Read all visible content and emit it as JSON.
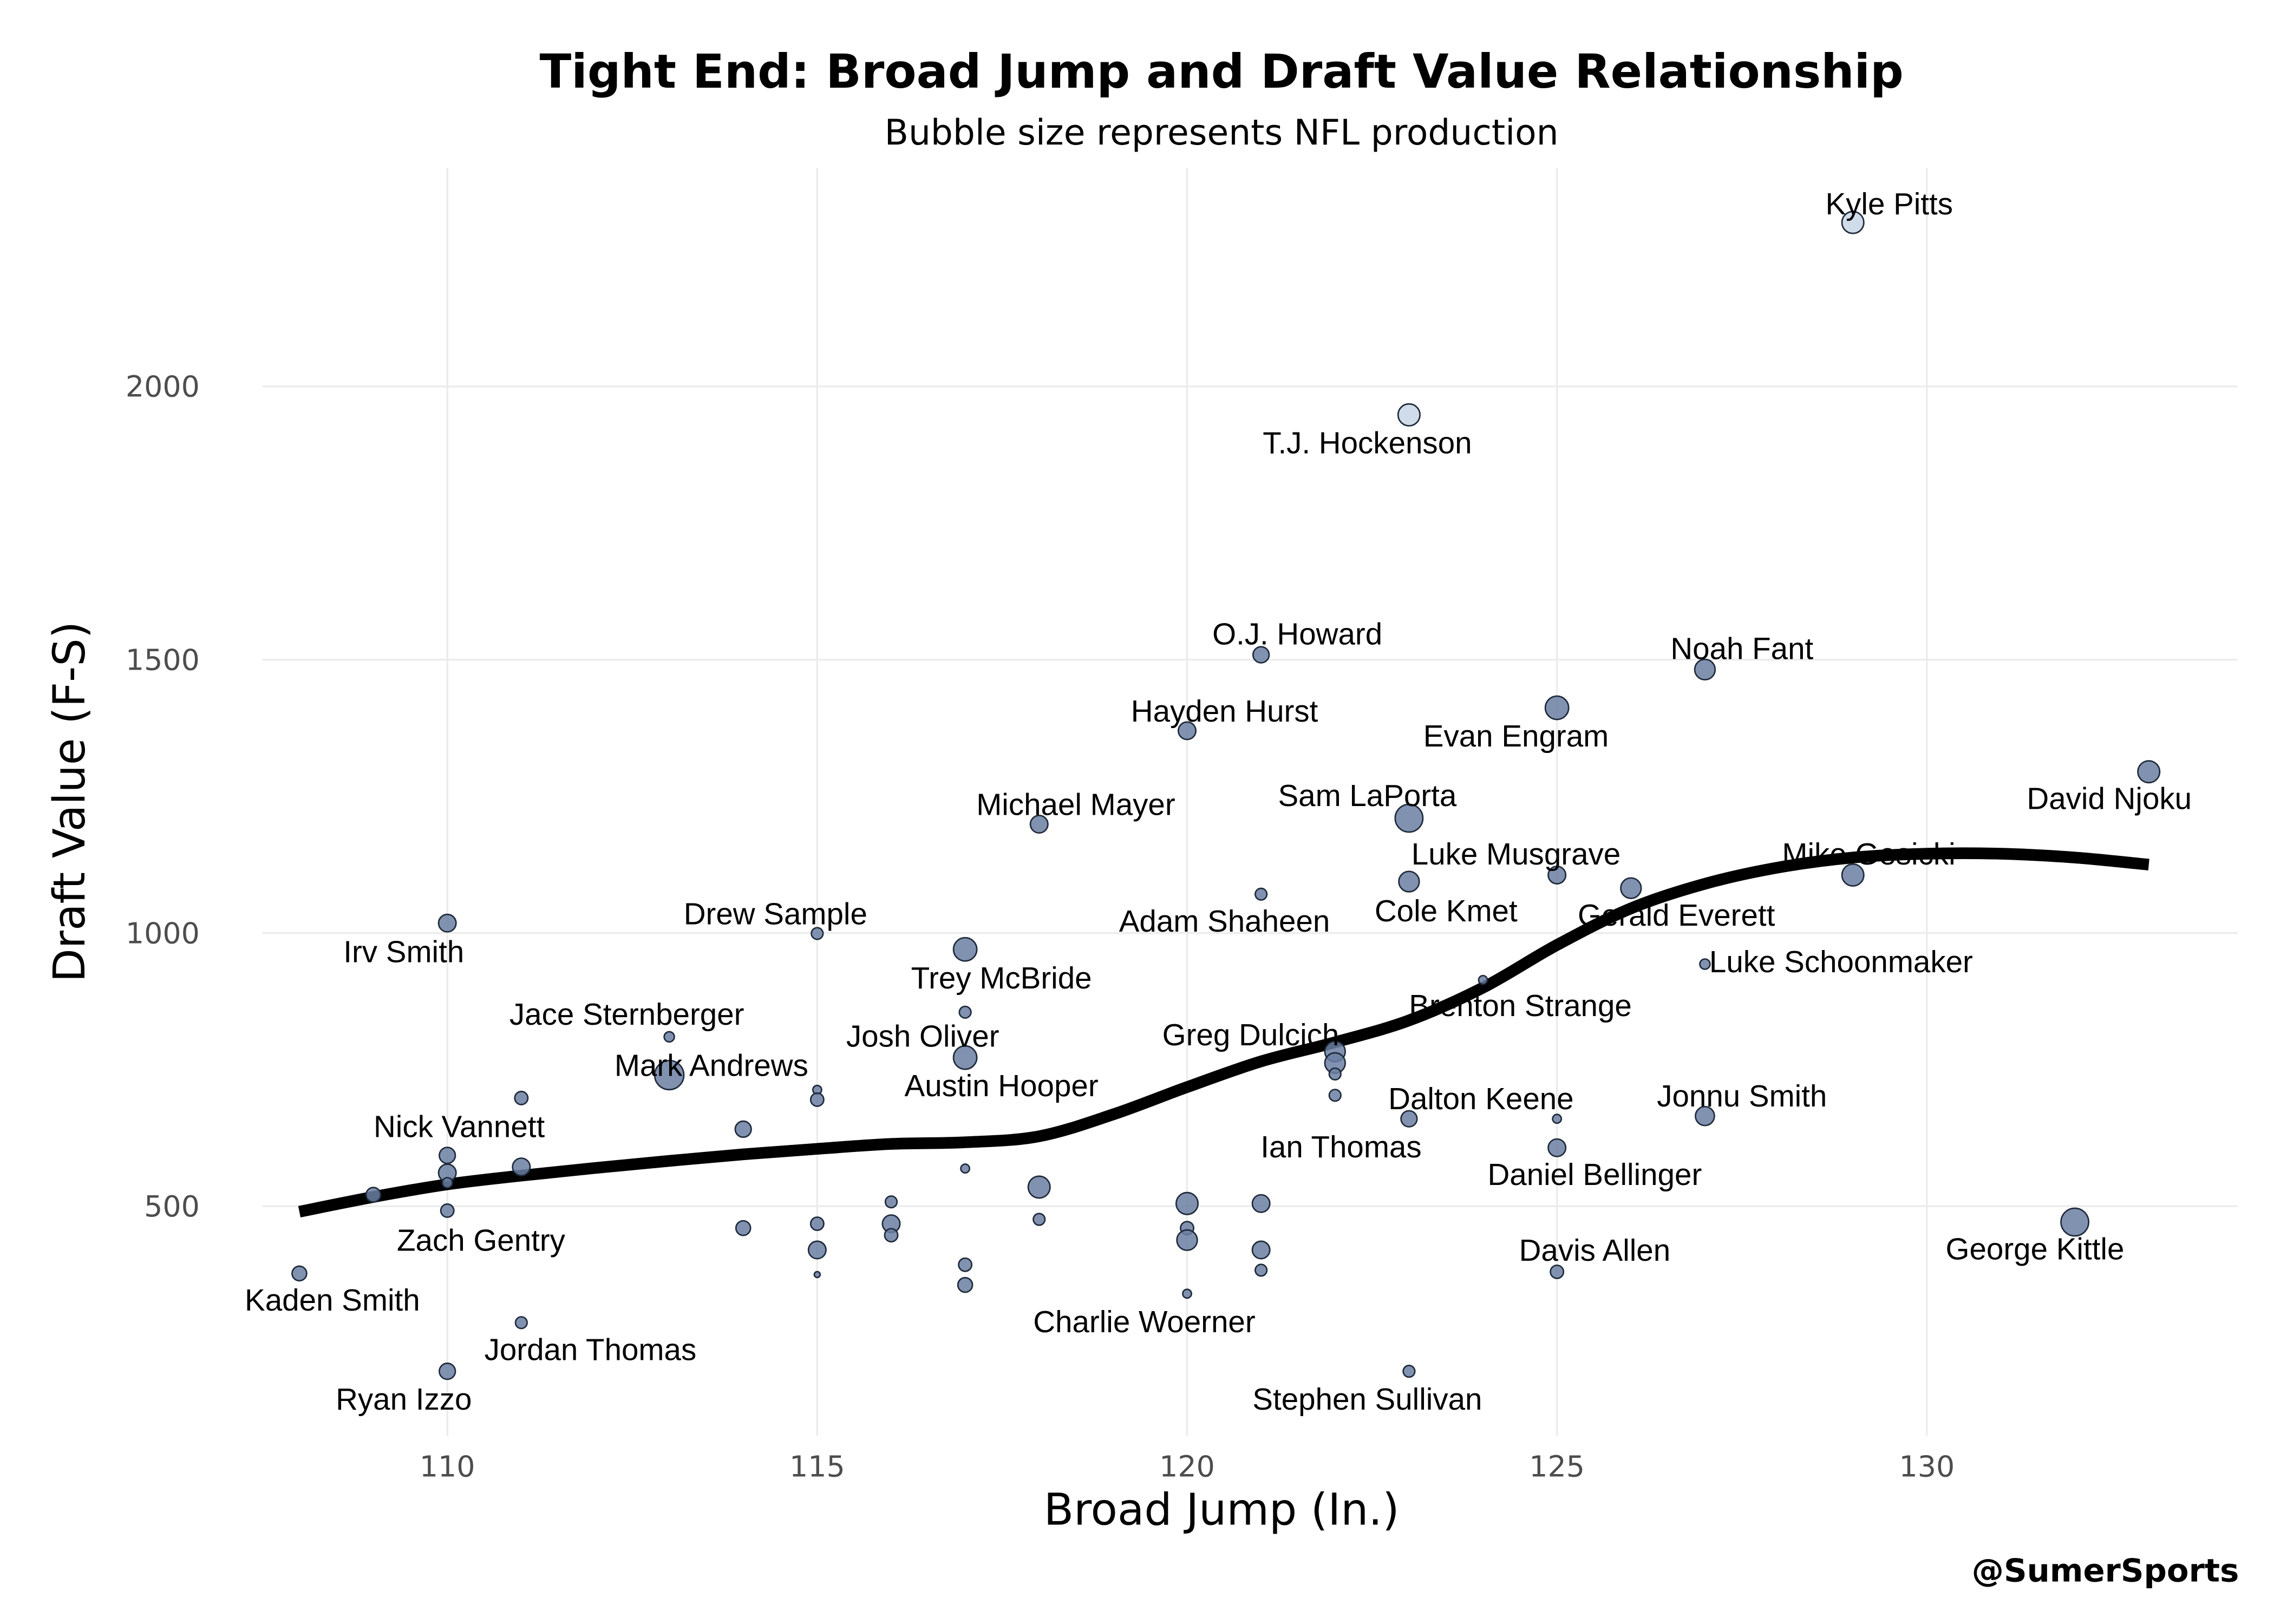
{
  "chart_data": {
    "type": "scatter",
    "title": "Tight End: Broad Jump and Draft Value Relationship",
    "subtitle": "Bubble size represents NFL production",
    "xlabel": "Broad Jump (In.)",
    "ylabel": "Draft Value (F-S)",
    "xlim": [
      107.5,
      134.2
    ],
    "ylim": [
      80,
      2400
    ],
    "xticks": [
      110,
      115,
      120,
      125,
      130
    ],
    "yticks": [
      500,
      1000,
      1500,
      2000
    ],
    "grid": true,
    "legend": "none",
    "colors": {
      "point": "#6b7fa3",
      "point_light": "#c8d6e5",
      "point_stroke": "#1f2a3a",
      "trend": "#000000"
    },
    "points": [
      {
        "x": 129,
        "y": 2300,
        "size": 7.5,
        "label": "Kyle Pitts",
        "light": true
      },
      {
        "x": 123,
        "y": 1948,
        "size": 7.5,
        "label": "T.J. Hockenson",
        "light": true
      },
      {
        "x": 121,
        "y": 1509,
        "size": 5.5,
        "label": "O.J. Howard"
      },
      {
        "x": 127,
        "y": 1482,
        "size": 7,
        "label": "Noah Fant"
      },
      {
        "x": 125,
        "y": 1412,
        "size": 8,
        "label": "Evan Engram"
      },
      {
        "x": 120,
        "y": 1370,
        "size": 6,
        "label": "Hayden Hurst"
      },
      {
        "x": 133,
        "y": 1295,
        "size": 7.5,
        "label": "David Njoku"
      },
      {
        "x": 123,
        "y": 1210,
        "size": 9.5,
        "label": "Sam LaPorta"
      },
      {
        "x": 118,
        "y": 1199,
        "size": 6,
        "label": "Michael Mayer"
      },
      {
        "x": 129,
        "y": 1106,
        "size": 7.5,
        "label": "Mike Gesicki"
      },
      {
        "x": 125,
        "y": 1106,
        "size": 6,
        "label": "Luke Musgrave"
      },
      {
        "x": 123,
        "y": 1094,
        "size": 7,
        "label": "Cole Kmet"
      },
      {
        "x": 126,
        "y": 1082,
        "size": 7,
        "label": "Gerald Everett"
      },
      {
        "x": 121,
        "y": 1071,
        "size": 4,
        "label": "Adam Shaheen"
      },
      {
        "x": 110,
        "y": 1018,
        "size": 6,
        "label": "Irv Smith"
      },
      {
        "x": 115,
        "y": 999,
        "size": 4,
        "label": "Drew Sample"
      },
      {
        "x": 117,
        "y": 970,
        "size": 8,
        "label": "Trey McBride"
      },
      {
        "x": 127,
        "y": 943,
        "size": 3.5,
        "label": "Luke Schoonmaker"
      },
      {
        "x": 124,
        "y": 914,
        "size": 3,
        "label": "Brenton Strange"
      },
      {
        "x": 117,
        "y": 855,
        "size": 4,
        "label": "Josh Oliver"
      },
      {
        "x": 113,
        "y": 810,
        "size": 3.5,
        "label": "Jace Sternberger"
      },
      {
        "x": 113,
        "y": 740,
        "size": 10,
        "label": "Mark Andrews"
      },
      {
        "x": 117,
        "y": 772,
        "size": 8,
        "label": "Austin Hooper"
      },
      {
        "x": 122,
        "y": 783,
        "size": 7,
        "label": "Greg Dulcich"
      },
      {
        "x": 122,
        "y": 762,
        "size": 7
      },
      {
        "x": 122,
        "y": 742,
        "size": 4
      },
      {
        "x": 122,
        "y": 703,
        "size": 4,
        "label": "Ian Thomas"
      },
      {
        "x": 115,
        "y": 713,
        "size": 3
      },
      {
        "x": 115,
        "y": 695,
        "size": 4.5
      },
      {
        "x": 111,
        "y": 698,
        "size": 4.5
      },
      {
        "x": 123,
        "y": 660,
        "size": 5.5,
        "label": "Dalton Keene"
      },
      {
        "x": 127,
        "y": 665,
        "size": 6.5,
        "label": "Jonnu Smith"
      },
      {
        "x": 125,
        "y": 660,
        "size": 3
      },
      {
        "x": 114,
        "y": 641,
        "size": 5.5
      },
      {
        "x": 110,
        "y": 593,
        "size": 5.5,
        "label": "Nick Vannett"
      },
      {
        "x": 125,
        "y": 607,
        "size": 6,
        "label": "Daniel Bellinger"
      },
      {
        "x": 110,
        "y": 561,
        "size": 6
      },
      {
        "x": 110,
        "y": 543,
        "size": 3.5
      },
      {
        "x": 111,
        "y": 572,
        "size": 6
      },
      {
        "x": 109,
        "y": 521,
        "size": 5
      },
      {
        "x": 117,
        "y": 569,
        "size": 3
      },
      {
        "x": 118,
        "y": 535,
        "size": 7.5
      },
      {
        "x": 116,
        "y": 508,
        "size": 4
      },
      {
        "x": 120,
        "y": 505,
        "size": 7.5
      },
      {
        "x": 121,
        "y": 505,
        "size": 6
      },
      {
        "x": 110,
        "y": 492,
        "size": 4.5,
        "label": "Zach Gentry"
      },
      {
        "x": 118,
        "y": 476,
        "size": 4
      },
      {
        "x": 132,
        "y": 471,
        "size": 9.5,
        "label": "George Kittle"
      },
      {
        "x": 115,
        "y": 468,
        "size": 4.5
      },
      {
        "x": 116,
        "y": 468,
        "size": 6
      },
      {
        "x": 116,
        "y": 447,
        "size": 4.5
      },
      {
        "x": 120,
        "y": 460,
        "size": 4.5
      },
      {
        "x": 120,
        "y": 438,
        "size": 7
      },
      {
        "x": 114,
        "y": 460,
        "size": 5
      },
      {
        "x": 115,
        "y": 420,
        "size": 6
      },
      {
        "x": 121,
        "y": 420,
        "size": 6
      },
      {
        "x": 117,
        "y": 393,
        "size": 4.5
      },
      {
        "x": 121,
        "y": 383,
        "size": 4
      },
      {
        "x": 125,
        "y": 380,
        "size": 4.5,
        "label": "Davis Allen"
      },
      {
        "x": 108,
        "y": 377,
        "size": 5,
        "label": "Kaden Smith"
      },
      {
        "x": 115,
        "y": 375,
        "size": 2
      },
      {
        "x": 117,
        "y": 356,
        "size": 5
      },
      {
        "x": 120,
        "y": 340,
        "size": 3,
        "label": "Charlie Woerner"
      },
      {
        "x": 111,
        "y": 287,
        "size": 4,
        "label": "Jordan Thomas"
      },
      {
        "x": 110,
        "y": 198,
        "size": 5.5,
        "label": "Ryan Izzo"
      },
      {
        "x": 123,
        "y": 198,
        "size": 4,
        "label": "Stephen Sullivan"
      }
    ],
    "trend": {
      "x": [
        108,
        109,
        110,
        111,
        112,
        113,
        114,
        115,
        116,
        117,
        118,
        119,
        120,
        121,
        122,
        123,
        124,
        125,
        126,
        127,
        128,
        129,
        130,
        131,
        132,
        133
      ],
      "y": [
        490,
        517,
        540,
        556,
        570,
        583,
        595,
        605,
        614,
        617,
        628,
        668,
        718,
        765,
        800,
        840,
        900,
        978,
        1045,
        1090,
        1120,
        1138,
        1145,
        1145,
        1138,
        1125
      ]
    }
  },
  "credit": "@SumerSports"
}
